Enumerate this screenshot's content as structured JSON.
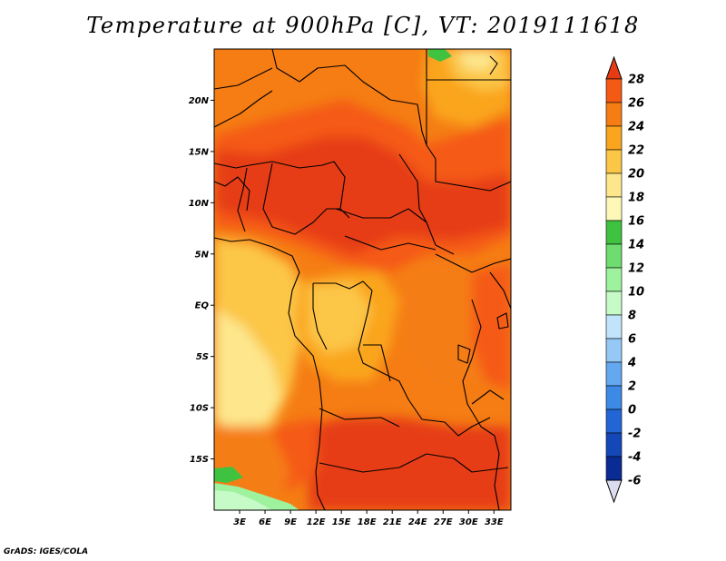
{
  "title": "Temperature at 900hPa [C], VT: 2019111618",
  "credit": "GrADS: IGES/COLA",
  "map": {
    "lon_range": [
      0,
      35
    ],
    "lat_range": [
      -20,
      25
    ],
    "lat_ticks": [
      {
        "value": 20,
        "label": "20N"
      },
      {
        "value": 15,
        "label": "15N"
      },
      {
        "value": 10,
        "label": "10N"
      },
      {
        "value": 5,
        "label": "5N"
      },
      {
        "value": 0,
        "label": "EQ"
      },
      {
        "value": -5,
        "label": "5S"
      },
      {
        "value": -10,
        "label": "10S"
      },
      {
        "value": -15,
        "label": "15S"
      }
    ],
    "lon_ticks": [
      {
        "value": 3,
        "label": "3E"
      },
      {
        "value": 6,
        "label": "6E"
      },
      {
        "value": 9,
        "label": "9E"
      },
      {
        "value": 12,
        "label": "12E"
      },
      {
        "value": 15,
        "label": "15E"
      },
      {
        "value": 18,
        "label": "18E"
      },
      {
        "value": 21,
        "label": "21E"
      },
      {
        "value": 24,
        "label": "24E"
      },
      {
        "value": 27,
        "label": "27E"
      },
      {
        "value": 30,
        "label": "30E"
      },
      {
        "value": 33,
        "label": "33E"
      }
    ]
  },
  "colorbar": {
    "levels": [
      "28",
      "26",
      "24",
      "22",
      "20",
      "18",
      "16",
      "14",
      "12",
      "10",
      "8",
      "6",
      "4",
      "2",
      "0",
      "-2",
      "-4",
      "-6"
    ],
    "colors": [
      "#e63c14",
      "#f55a14",
      "#f57d14",
      "#faa51e",
      "#fcc646",
      "#fde68c",
      "#fdf8b8",
      "#3fc23f",
      "#6fdc6f",
      "#9ef29e",
      "#c6fac6",
      "#c2e4fb",
      "#96c8f5",
      "#64a8ef",
      "#3c8ae6",
      "#2266d6",
      "#1448b8",
      "#0a2a94",
      "#06126a"
    ]
  }
}
